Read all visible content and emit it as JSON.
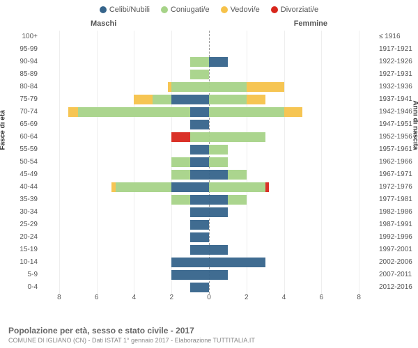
{
  "legend": [
    {
      "label": "Celibi/Nubili",
      "color": "#36648b"
    },
    {
      "label": "Coniugati/e",
      "color": "#a6d388"
    },
    {
      "label": "Vedovi/e",
      "color": "#f6c24a"
    },
    {
      "label": "Divorziati/e",
      "color": "#d8261c"
    }
  ],
  "gender_labels": {
    "m": "Maschi",
    "f": "Femmine"
  },
  "axis_labels": {
    "left": "Fasce di età",
    "right": "Anni di nascita"
  },
  "title": "Popolazione per età, sesso e stato civile - 2017",
  "subtitle": "COMUNE DI IGLIANO (CN) - Dati ISTAT 1° gennaio 2017 - Elaborazione TUTTITALIA.IT",
  "x_ticks": [
    "8",
    "6",
    "4",
    "2",
    "0",
    "2",
    "4",
    "6",
    "8"
  ],
  "x_max": 9,
  "colors": {
    "celibi": "#36648b",
    "coniugati": "#a6d388",
    "vedovi": "#f6c24a",
    "divorziati": "#d8261c",
    "grid": "#eeeeee",
    "center": "#999999",
    "bg": "#ffffff",
    "text": "#555555"
  },
  "rows": [
    {
      "age": "100+",
      "birth": "≤ 1916",
      "m": {
        "cel": 0,
        "con": 0,
        "ved": 0,
        "div": 0
      },
      "f": {
        "cel": 0,
        "con": 0,
        "ved": 0,
        "div": 0
      }
    },
    {
      "age": "95-99",
      "birth": "1917-1921",
      "m": {
        "cel": 0,
        "con": 0,
        "ved": 0,
        "div": 0
      },
      "f": {
        "cel": 0,
        "con": 0,
        "ved": 0,
        "div": 0
      }
    },
    {
      "age": "90-94",
      "birth": "1922-1926",
      "m": {
        "cel": 0,
        "con": 1,
        "ved": 0,
        "div": 0
      },
      "f": {
        "cel": 1,
        "con": 0,
        "ved": 0,
        "div": 0
      }
    },
    {
      "age": "85-89",
      "birth": "1927-1931",
      "m": {
        "cel": 0,
        "con": 1,
        "ved": 0,
        "div": 0
      },
      "f": {
        "cel": 0,
        "con": 0,
        "ved": 0,
        "div": 0
      }
    },
    {
      "age": "80-84",
      "birth": "1932-1936",
      "m": {
        "cel": 0,
        "con": 2,
        "ved": 0.2,
        "div": 0
      },
      "f": {
        "cel": 0,
        "con": 2,
        "ved": 2,
        "div": 0
      }
    },
    {
      "age": "75-79",
      "birth": "1937-1941",
      "m": {
        "cel": 2,
        "con": 1,
        "ved": 1,
        "div": 0
      },
      "f": {
        "cel": 0,
        "con": 2,
        "ved": 1,
        "div": 0
      }
    },
    {
      "age": "70-74",
      "birth": "1942-1946",
      "m": {
        "cel": 1,
        "con": 6,
        "ved": 0.5,
        "div": 0
      },
      "f": {
        "cel": 0,
        "con": 4,
        "ved": 1,
        "div": 0
      }
    },
    {
      "age": "65-69",
      "birth": "1947-1951",
      "m": {
        "cel": 1,
        "con": 0,
        "ved": 0,
        "div": 0
      },
      "f": {
        "cel": 0,
        "con": 0,
        "ved": 0,
        "div": 0
      }
    },
    {
      "age": "60-64",
      "birth": "1952-1956",
      "m": {
        "cel": 0,
        "con": 1,
        "ved": 0,
        "div": 1
      },
      "f": {
        "cel": 0,
        "con": 3,
        "ved": 0,
        "div": 0
      }
    },
    {
      "age": "55-59",
      "birth": "1957-1961",
      "m": {
        "cel": 1,
        "con": 0,
        "ved": 0,
        "div": 0
      },
      "f": {
        "cel": 0,
        "con": 1,
        "ved": 0,
        "div": 0
      }
    },
    {
      "age": "50-54",
      "birth": "1962-1966",
      "m": {
        "cel": 1,
        "con": 1,
        "ved": 0,
        "div": 0
      },
      "f": {
        "cel": 0,
        "con": 1,
        "ved": 0,
        "div": 0
      }
    },
    {
      "age": "45-49",
      "birth": "1967-1971",
      "m": {
        "cel": 1,
        "con": 1,
        "ved": 0,
        "div": 0
      },
      "f": {
        "cel": 1,
        "con": 1,
        "ved": 0,
        "div": 0
      }
    },
    {
      "age": "40-44",
      "birth": "1972-1976",
      "m": {
        "cel": 2,
        "con": 3,
        "ved": 0.2,
        "div": 0
      },
      "f": {
        "cel": 0,
        "con": 3,
        "ved": 0,
        "div": 0.2
      }
    },
    {
      "age": "35-39",
      "birth": "1977-1981",
      "m": {
        "cel": 1,
        "con": 1,
        "ved": 0,
        "div": 0
      },
      "f": {
        "cel": 1,
        "con": 1,
        "ved": 0,
        "div": 0
      }
    },
    {
      "age": "30-34",
      "birth": "1982-1986",
      "m": {
        "cel": 1,
        "con": 0,
        "ved": 0,
        "div": 0
      },
      "f": {
        "cel": 1,
        "con": 0,
        "ved": 0,
        "div": 0
      }
    },
    {
      "age": "25-29",
      "birth": "1987-1991",
      "m": {
        "cel": 1,
        "con": 0,
        "ved": 0,
        "div": 0
      },
      "f": {
        "cel": 0,
        "con": 0,
        "ved": 0,
        "div": 0
      }
    },
    {
      "age": "20-24",
      "birth": "1992-1996",
      "m": {
        "cel": 1,
        "con": 0,
        "ved": 0,
        "div": 0
      },
      "f": {
        "cel": 0,
        "con": 0,
        "ved": 0,
        "div": 0
      }
    },
    {
      "age": "15-19",
      "birth": "1997-2001",
      "m": {
        "cel": 1,
        "con": 0,
        "ved": 0,
        "div": 0
      },
      "f": {
        "cel": 1,
        "con": 0,
        "ved": 0,
        "div": 0
      }
    },
    {
      "age": "10-14",
      "birth": "2002-2006",
      "m": {
        "cel": 2,
        "con": 0,
        "ved": 0,
        "div": 0
      },
      "f": {
        "cel": 3,
        "con": 0,
        "ved": 0,
        "div": 0
      }
    },
    {
      "age": "5-9",
      "birth": "2007-2011",
      "m": {
        "cel": 2,
        "con": 0,
        "ved": 0,
        "div": 0
      },
      "f": {
        "cel": 1,
        "con": 0,
        "ved": 0,
        "div": 0
      }
    },
    {
      "age": "0-4",
      "birth": "2012-2016",
      "m": {
        "cel": 1,
        "con": 0,
        "ved": 0,
        "div": 0
      },
      "f": {
        "cel": 0,
        "con": 0,
        "ved": 0,
        "div": 0
      }
    }
  ]
}
